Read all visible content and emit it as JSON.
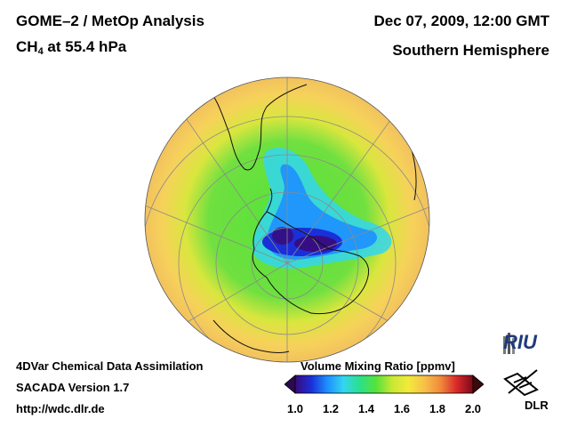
{
  "header": {
    "title": "GOME–2 / MetOp Analysis",
    "species": "CH",
    "species_sub": "4",
    "level": " at 55.4 hPa",
    "date": "Dec 07, 2009, 12:00 GMT",
    "region": "Southern Hemisphere"
  },
  "footer": {
    "line1": "4DVar Chemical Data Assimilation",
    "line2": "SACADA Version 1.7",
    "line3": "http://wdc.dlr.de"
  },
  "colorbar": {
    "title": "Volume Mixing Ratio [ppmv]",
    "min": 1.0,
    "max": 2.0,
    "ticks": [
      "1.0",
      "1.2",
      "1.4",
      "1.6",
      "1.8",
      "2.0"
    ],
    "colors": [
      "#3a0a7a",
      "#1a2fd8",
      "#1e90ff",
      "#33d6f0",
      "#2be08a",
      "#55e23a",
      "#c8e834",
      "#f2ea3a",
      "#f7c04a",
      "#f08a3a",
      "#d8282a",
      "#7a0a1a"
    ]
  },
  "logos": {
    "riu": "RIU",
    "dlr": "DLR"
  }
}
